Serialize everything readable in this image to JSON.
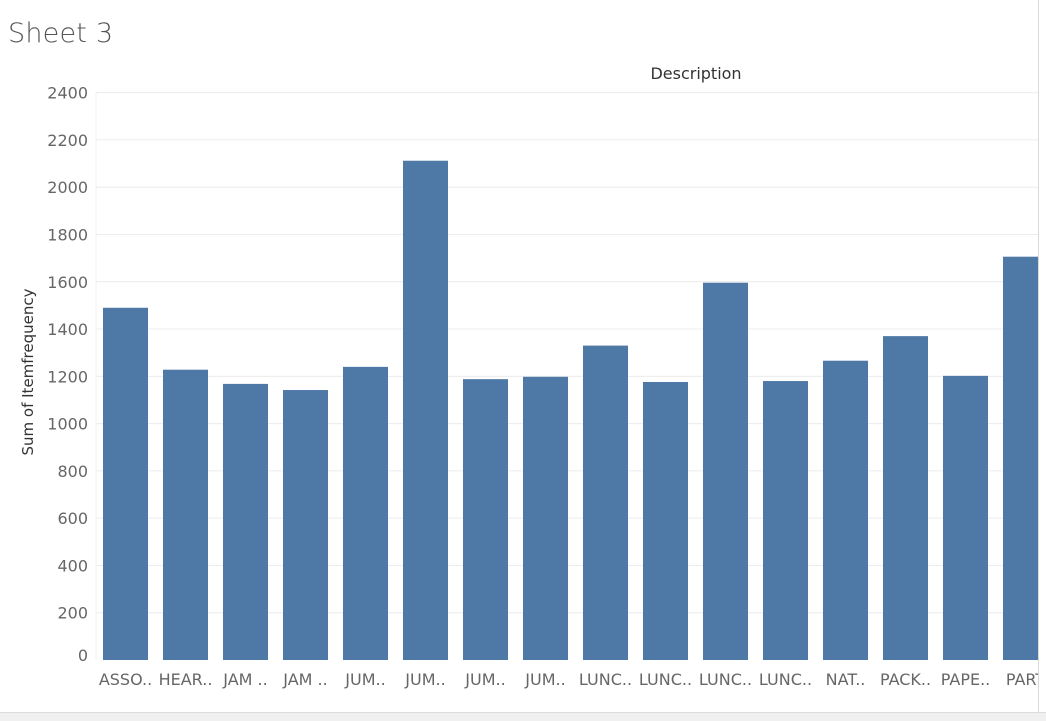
{
  "sheet": {
    "title": "Sheet 3"
  },
  "chart_data": {
    "type": "bar",
    "header": "Description",
    "ylabel": "Sum of Itemfrequency",
    "xlabel": "",
    "ylim": [
      0,
      2400
    ],
    "yticks": [
      0,
      200,
      400,
      600,
      800,
      1000,
      1200,
      1400,
      1600,
      1800,
      2000,
      2200,
      2400
    ],
    "categories": [
      "ASSO..",
      "HEAR..",
      "JAM ..",
      "JAM ..",
      "JUM..",
      "JUM..",
      "JUM..",
      "JUM..",
      "LUNC..",
      "LUNC..",
      "LUNC..",
      "LUNC..",
      "NAT..",
      "PACK..",
      "PAPE..",
      "PART"
    ],
    "values": [
      1490,
      1228,
      1168,
      1142,
      1240,
      2112,
      1188,
      1198,
      1330,
      1176,
      1596,
      1180,
      1266,
      1370,
      1202,
      1706
    ],
    "bar_color": "#4e79a7",
    "grid": true,
    "legend": "none"
  }
}
